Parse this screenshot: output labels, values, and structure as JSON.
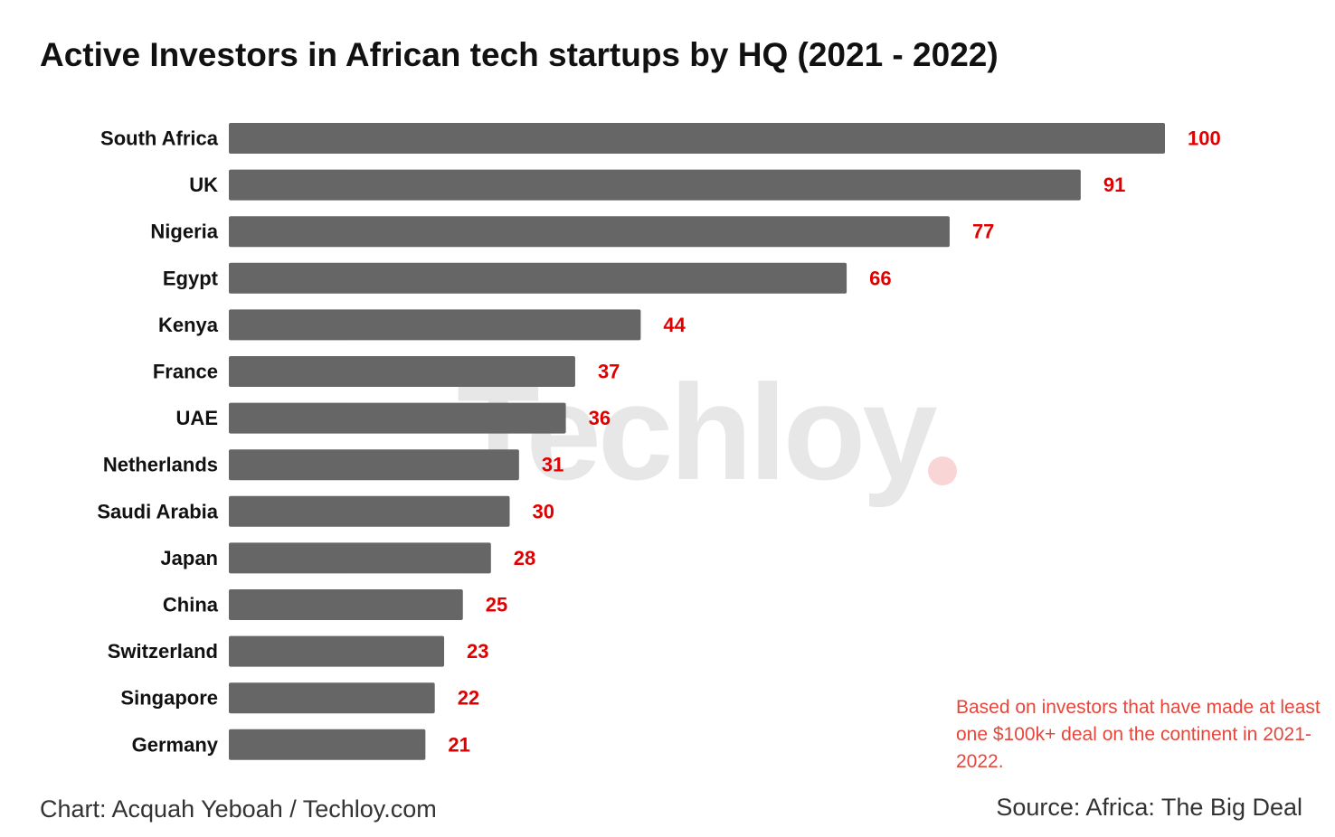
{
  "chart_data": {
    "type": "bar",
    "orientation": "horizontal",
    "title": "Active Investors in African tech startups by HQ (2021 - 2022)",
    "categories": [
      "South Africa",
      "UK",
      "Nigeria",
      "Egypt",
      "Kenya",
      "France",
      "UAE",
      "Netherlands",
      "Saudi Arabia",
      "Japan",
      "China",
      "Switzerland",
      "Singapore",
      "Germany"
    ],
    "values": [
      100,
      91,
      77,
      66,
      44,
      37,
      36,
      31,
      30,
      28,
      25,
      23,
      22,
      21
    ],
    "xlim": [
      0,
      100
    ],
    "grid": false,
    "legend": "none",
    "colors": {
      "bar": "#666666",
      "data_label": "#e00000",
      "category_label": "#111111"
    }
  },
  "watermark": {
    "text": "Techloy",
    "dot_color": "#f3a1a1"
  },
  "note": "Based on investors that have made at least one $100k+ deal on the continent in 2021-2022.",
  "credit": "Chart: Acquah Yeboah / Techloy.com",
  "source": "Source: Africa: The Big Deal"
}
